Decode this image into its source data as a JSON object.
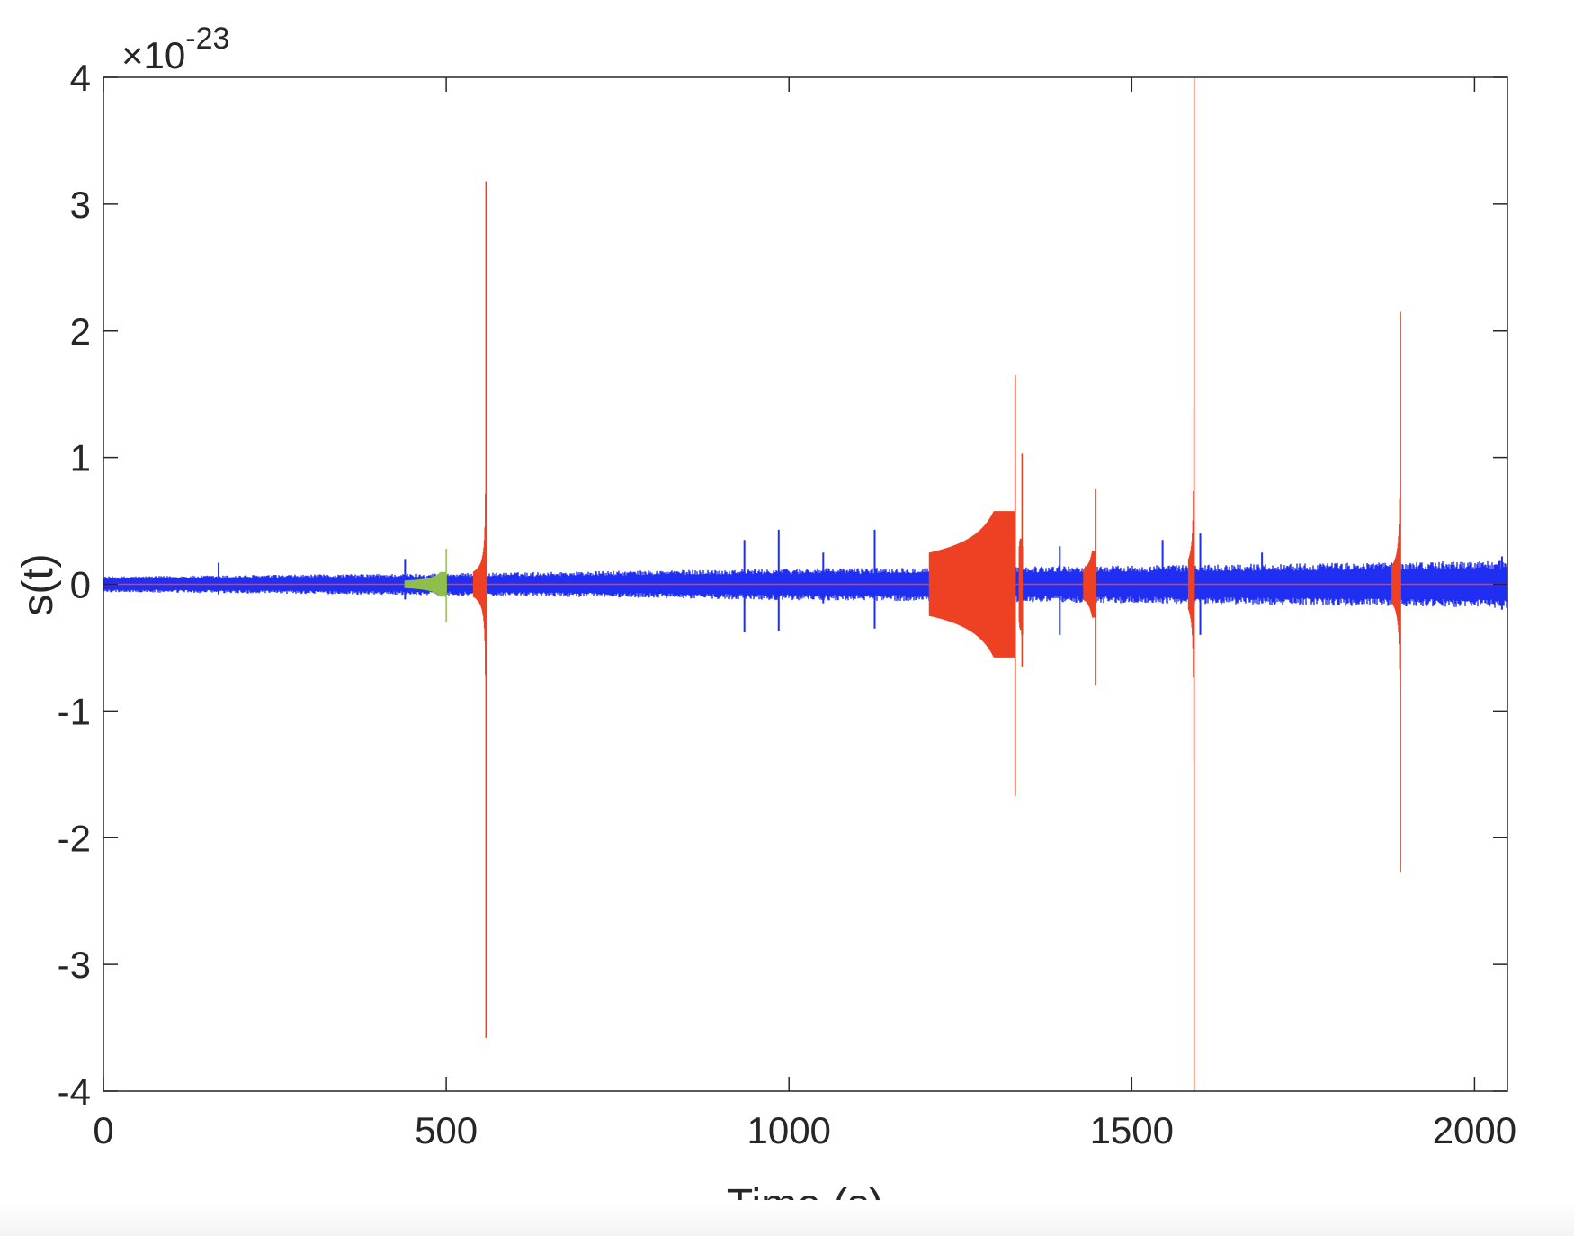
{
  "chart_data": {
    "type": "line",
    "xlabel": "Time (s)",
    "ylabel": "s(t)",
    "y_exponent_label": "×10",
    "y_exponent": "-23",
    "xlim": [
      0,
      2048
    ],
    "ylim": [
      -4,
      4
    ],
    "xticks": [
      "0",
      "500",
      "1000",
      "1500",
      "2000"
    ],
    "xtick_values": [
      0,
      500,
      1000,
      1500,
      2000
    ],
    "yticks": [
      "-4",
      "-3",
      "-2",
      "-1",
      "0",
      "1",
      "2",
      "3",
      "4"
    ],
    "ytick_values": [
      -4,
      -3,
      -2,
      -1,
      0,
      1,
      2,
      3,
      4
    ],
    "grid": false,
    "colors": {
      "noise": "#1f2ef0",
      "signal": "#ee4123",
      "signal_alt": "#8fbf4a",
      "axes": "#262626"
    },
    "series": [
      {
        "role": "noise",
        "color": "#1f2ef0",
        "envelope": [
          [
            0,
            0.05
          ],
          [
            500,
            0.07
          ],
          [
            1000,
            0.1
          ],
          [
            1500,
            0.12
          ],
          [
            2048,
            0.15
          ]
        ],
        "glitches": [
          [
            168,
            0.17,
            -0.08
          ],
          [
            440,
            0.2,
            -0.12
          ],
          [
            935,
            0.35,
            -0.38
          ],
          [
            985,
            0.43,
            -0.37
          ],
          [
            1050,
            0.25,
            -0.15
          ],
          [
            1125,
            0.43,
            -0.35
          ],
          [
            1340,
            0.3,
            -0.4
          ],
          [
            1395,
            0.3,
            -0.4
          ],
          [
            1545,
            0.35,
            -0.15
          ],
          [
            1600,
            0.4,
            -0.4
          ],
          [
            1690,
            0.25,
            -0.15
          ],
          [
            2040,
            0.22,
            -0.2
          ]
        ]
      },
      {
        "role": "signal",
        "color": "#ee4123",
        "events": [
          {
            "start": 540,
            "merger": 558,
            "max": 3.18,
            "min": -3.58,
            "base": 0.1
          },
          {
            "start": 1205,
            "merger": 1330,
            "max": 1.65,
            "min": -1.67,
            "base": 0.25
          },
          {
            "start": 1336,
            "merger": 1340,
            "max": 1.03,
            "min": -0.65,
            "base": 0.3
          },
          {
            "start": 1430,
            "merger": 1447,
            "max": 0.75,
            "min": -0.8,
            "base": 0.12
          },
          {
            "start": 1583,
            "merger": 1591,
            "max": 4.0,
            "min": -4.0,
            "base": 0.2
          },
          {
            "start": 1880,
            "merger": 1892,
            "max": 2.15,
            "min": -2.27,
            "base": 0.15
          }
        ]
      },
      {
        "role": "signal_alt",
        "color": "#8fbf4a",
        "events": [
          {
            "start": 440,
            "merger": 500,
            "max": 0.28,
            "min": -0.3,
            "base": 0.03
          }
        ]
      }
    ]
  }
}
